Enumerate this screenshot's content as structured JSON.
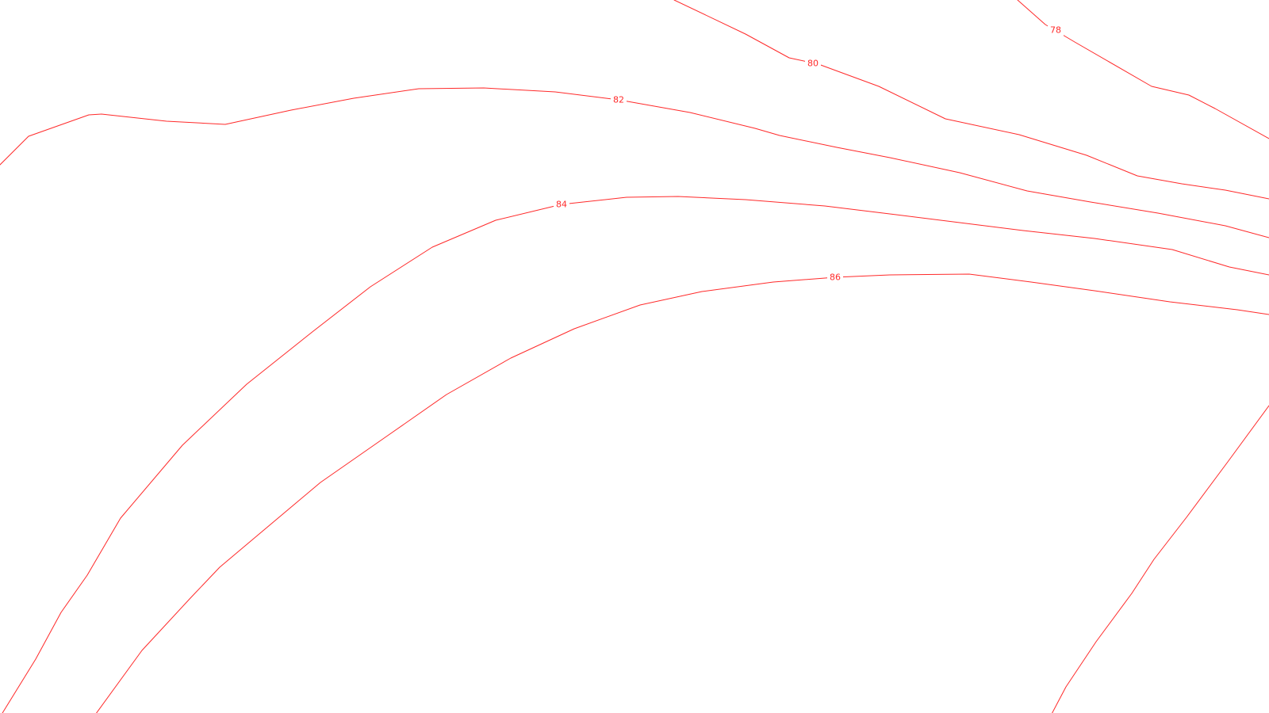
{
  "map": {
    "line_color": "#ff2a2a",
    "background_color": "#ffffff",
    "contours": [
      {
        "name": "contour-78",
        "label": "78"
      },
      {
        "name": "contour-80",
        "label": "80"
      },
      {
        "name": "contour-82",
        "label": "82"
      },
      {
        "name": "contour-82b",
        "label": ""
      },
      {
        "name": "contour-84",
        "label": "84"
      },
      {
        "name": "contour-86",
        "label": "86"
      },
      {
        "name": "contour-right-edge",
        "label": ""
      }
    ]
  }
}
